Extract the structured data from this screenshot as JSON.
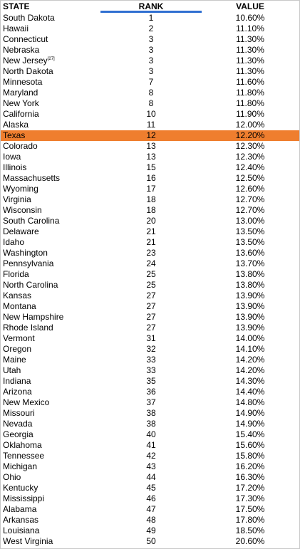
{
  "table": {
    "headers": {
      "state": "STATE",
      "rank": "RANK",
      "value": "VALUE"
    },
    "highlight_color": "#ef7e2e",
    "sort_indicator_color": "#2f6fd1",
    "rows": [
      {
        "state": "South Dakota",
        "rank": "1",
        "value": "10.60%"
      },
      {
        "state": "Hawaii",
        "rank": "2",
        "value": "11.10%"
      },
      {
        "state": "Connecticut",
        "rank": "3",
        "value": "11.30%"
      },
      {
        "state": "Nebraska",
        "rank": "3",
        "value": "11.30%"
      },
      {
        "state": "New Jersey",
        "sup": "[27]",
        "rank": "3",
        "value": "11.30%"
      },
      {
        "state": "North Dakota",
        "rank": "3",
        "value": "11.30%"
      },
      {
        "state": "Minnesota",
        "rank": "7",
        "value": "11.60%"
      },
      {
        "state": "Maryland",
        "rank": "8",
        "value": "11.80%"
      },
      {
        "state": "New York",
        "rank": "8",
        "value": "11.80%"
      },
      {
        "state": "California",
        "rank": "10",
        "value": "11.90%"
      },
      {
        "state": "Alaska",
        "rank": "11",
        "value": "12.00%"
      },
      {
        "state": "Texas",
        "rank": "12",
        "value": "12.20%",
        "highlighted": true
      },
      {
        "state": "Colorado",
        "rank": "13",
        "value": "12.30%"
      },
      {
        "state": "Iowa",
        "rank": "13",
        "value": "12.30%"
      },
      {
        "state": "Illinois",
        "rank": "15",
        "value": "12.40%"
      },
      {
        "state": "Massachusetts",
        "rank": "16",
        "value": "12.50%"
      },
      {
        "state": "Wyoming",
        "rank": "17",
        "value": "12.60%"
      },
      {
        "state": "Virginia",
        "rank": "18",
        "value": "12.70%"
      },
      {
        "state": "Wisconsin",
        "rank": "18",
        "value": "12.70%"
      },
      {
        "state": "South Carolina",
        "rank": "20",
        "value": "13.00%"
      },
      {
        "state": "Delaware",
        "rank": "21",
        "value": "13.50%"
      },
      {
        "state": "Idaho",
        "rank": "21",
        "value": "13.50%"
      },
      {
        "state": "Washington",
        "rank": "23",
        "value": "13.60%"
      },
      {
        "state": "Pennsylvania",
        "rank": "24",
        "value": "13.70%"
      },
      {
        "state": "Florida",
        "rank": "25",
        "value": "13.80%"
      },
      {
        "state": "North Carolina",
        "rank": "25",
        "value": "13.80%"
      },
      {
        "state": "Kansas",
        "rank": "27",
        "value": "13.90%"
      },
      {
        "state": "Montana",
        "rank": "27",
        "value": "13.90%"
      },
      {
        "state": "New Hampshire",
        "rank": "27",
        "value": "13.90%"
      },
      {
        "state": "Rhode Island",
        "rank": "27",
        "value": "13.90%"
      },
      {
        "state": "Vermont",
        "rank": "31",
        "value": "14.00%"
      },
      {
        "state": "Oregon",
        "rank": "32",
        "value": "14.10%"
      },
      {
        "state": "Maine",
        "rank": "33",
        "value": "14.20%"
      },
      {
        "state": "Utah",
        "rank": "33",
        "value": "14.20%"
      },
      {
        "state": "Indiana",
        "rank": "35",
        "value": "14.30%"
      },
      {
        "state": "Arizona",
        "rank": "36",
        "value": "14.40%"
      },
      {
        "state": "New Mexico",
        "rank": "37",
        "value": "14.80%"
      },
      {
        "state": "Missouri",
        "rank": "38",
        "value": "14.90%"
      },
      {
        "state": "Nevada",
        "rank": "38",
        "value": "14.90%"
      },
      {
        "state": "Georgia",
        "rank": "40",
        "value": "15.40%"
      },
      {
        "state": "Oklahoma",
        "rank": "41",
        "value": "15.60%"
      },
      {
        "state": "Tennessee",
        "rank": "42",
        "value": "15.80%"
      },
      {
        "state": "Michigan",
        "rank": "43",
        "value": "16.20%"
      },
      {
        "state": "Ohio",
        "rank": "44",
        "value": "16.30%"
      },
      {
        "state": "Kentucky",
        "rank": "45",
        "value": "17.20%"
      },
      {
        "state": "Mississippi",
        "rank": "46",
        "value": "17.30%"
      },
      {
        "state": "Alabama",
        "rank": "47",
        "value": "17.50%"
      },
      {
        "state": "Arkansas",
        "rank": "48",
        "value": "17.80%"
      },
      {
        "state": "Louisiana",
        "rank": "49",
        "value": "18.50%"
      },
      {
        "state": "West Virginia",
        "rank": "50",
        "value": "20.60%"
      }
    ]
  }
}
